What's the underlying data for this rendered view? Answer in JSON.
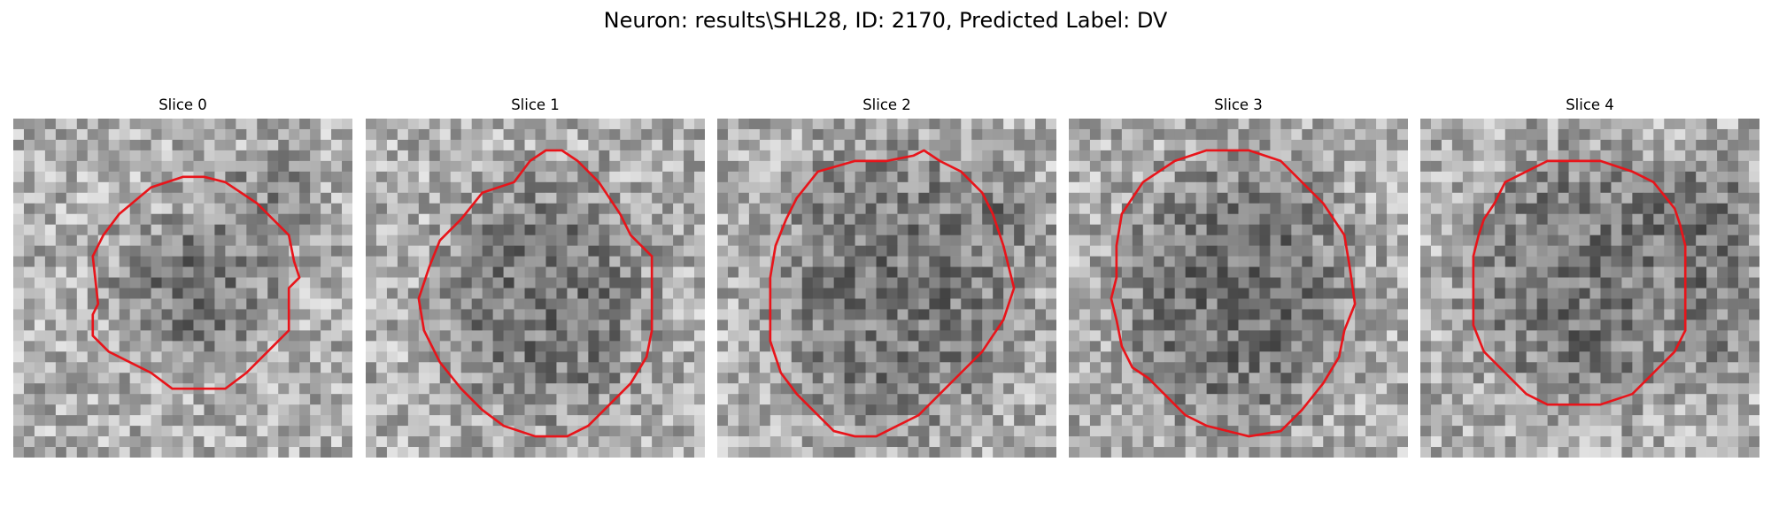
{
  "figure": {
    "title": "Neuron: results\\SHL28, ID: 2170, Predicted Label: DV"
  },
  "panels": [
    {
      "title": "Slice 0",
      "seed": 11,
      "contour": [
        [
          16,
          5.5
        ],
        [
          13,
          6.5
        ],
        [
          10,
          9
        ],
        [
          8.5,
          11
        ],
        [
          7.5,
          13
        ],
        [
          8,
          17.5
        ],
        [
          7.5,
          18.5
        ],
        [
          7.5,
          20.5
        ],
        [
          9,
          22
        ],
        [
          11,
          23
        ],
        [
          13,
          24
        ],
        [
          15,
          25.5
        ],
        [
          20,
          25.5
        ],
        [
          22,
          24
        ],
        [
          24,
          22
        ],
        [
          26,
          20
        ],
        [
          26,
          16
        ],
        [
          27,
          15
        ],
        [
          26.5,
          13.5
        ],
        [
          26,
          11
        ],
        [
          23,
          8
        ],
        [
          20,
          6
        ],
        [
          18,
          5.5
        ]
      ],
      "dark": [
        [
          17,
          16,
          7.5,
          6.5,
          55
        ],
        [
          24,
          8,
          4.5,
          4.5,
          35
        ]
      ]
    },
    {
      "title": "Slice 1",
      "seed": 23,
      "contour": [
        [
          17,
          3
        ],
        [
          15.5,
          4
        ],
        [
          14,
          6
        ],
        [
          11,
          7
        ],
        [
          9,
          9.5
        ],
        [
          7,
          11.5
        ],
        [
          6,
          14
        ],
        [
          5,
          17
        ],
        [
          5.5,
          20
        ],
        [
          7,
          23
        ],
        [
          9,
          25.5
        ],
        [
          11,
          27.5
        ],
        [
          13,
          29
        ],
        [
          16,
          30
        ],
        [
          19,
          30
        ],
        [
          21,
          29
        ],
        [
          23,
          27
        ],
        [
          25,
          25
        ],
        [
          26.5,
          22.5
        ],
        [
          27,
          20
        ],
        [
          27,
          16
        ],
        [
          27,
          13
        ],
        [
          25,
          11
        ],
        [
          24,
          9
        ],
        [
          22,
          6
        ],
        [
          20,
          4
        ],
        [
          18.5,
          3
        ]
      ],
      "dark": [
        [
          17,
          17,
          9.5,
          11,
          55
        ]
      ]
    },
    {
      "title": "Slice 2",
      "seed": 37,
      "contour": [
        [
          19.5,
          3
        ],
        [
          18.5,
          3.5
        ],
        [
          16,
          4
        ],
        [
          13,
          4
        ],
        [
          9.5,
          5
        ],
        [
          7.5,
          7.5
        ],
        [
          6.5,
          9.5
        ],
        [
          5.5,
          12
        ],
        [
          5,
          15
        ],
        [
          5,
          18
        ],
        [
          5,
          21
        ],
        [
          6,
          24
        ],
        [
          7.5,
          26
        ],
        [
          8.5,
          27
        ],
        [
          9.5,
          28
        ],
        [
          11,
          29.5
        ],
        [
          13,
          30
        ],
        [
          15,
          30
        ],
        [
          17,
          29
        ],
        [
          19,
          28
        ],
        [
          21,
          26
        ],
        [
          23,
          24
        ],
        [
          25,
          22
        ],
        [
          27,
          19
        ],
        [
          28,
          16
        ],
        [
          27,
          12
        ],
        [
          26,
          9
        ],
        [
          25,
          7
        ],
        [
          23,
          5
        ],
        [
          21,
          4
        ]
      ],
      "dark": [
        [
          17,
          16,
          11.5,
          13.5,
          55
        ],
        [
          28,
          9,
          3.5,
          3.5,
          35
        ]
      ]
    },
    {
      "title": "Slice 3",
      "seed": 53,
      "contour": [
        [
          16,
          3
        ],
        [
          13,
          3
        ],
        [
          10,
          4
        ],
        [
          7,
          6
        ],
        [
          5,
          9
        ],
        [
          4.5,
          12
        ],
        [
          4.5,
          15
        ],
        [
          4,
          17
        ],
        [
          4.5,
          19
        ],
        [
          5,
          21.5
        ],
        [
          6,
          23.5
        ],
        [
          7.5,
          24.5
        ],
        [
          9,
          26
        ],
        [
          10,
          27
        ],
        [
          11,
          28
        ],
        [
          13,
          29
        ],
        [
          17,
          30
        ],
        [
          20,
          29.5
        ],
        [
          22,
          27.5
        ],
        [
          24,
          25
        ],
        [
          25.5,
          22.5
        ],
        [
          26,
          20
        ],
        [
          27,
          17.5
        ],
        [
          26.5,
          14
        ],
        [
          26,
          11
        ],
        [
          24,
          8
        ],
        [
          22,
          6
        ],
        [
          20,
          4
        ],
        [
          17,
          3
        ]
      ],
      "dark": [
        [
          16,
          16.5,
          11,
          12.5,
          60
        ]
      ]
    },
    {
      "title": "Slice 4",
      "seed": 71,
      "contour": [
        [
          12,
          4
        ],
        [
          10,
          5
        ],
        [
          8,
          6
        ],
        [
          7,
          8
        ],
        [
          6,
          9.5
        ],
        [
          5.5,
          11
        ],
        [
          5,
          13
        ],
        [
          5,
          16
        ],
        [
          5,
          19.5
        ],
        [
          6,
          22
        ],
        [
          8,
          24
        ],
        [
          10,
          26
        ],
        [
          12,
          27
        ],
        [
          14,
          27
        ],
        [
          17,
          27
        ],
        [
          20,
          26
        ],
        [
          22,
          24
        ],
        [
          24,
          22
        ],
        [
          25,
          20
        ],
        [
          25,
          16
        ],
        [
          25,
          12
        ],
        [
          24.5,
          10
        ],
        [
          24,
          8.5
        ],
        [
          22,
          6
        ],
        [
          20,
          5
        ],
        [
          17,
          4
        ],
        [
          14,
          4
        ]
      ],
      "dark": [
        [
          15,
          15,
          10.5,
          12,
          55
        ],
        [
          27,
          9,
          5,
          5,
          45
        ],
        [
          28,
          19,
          4,
          7,
          40
        ]
      ]
    }
  ]
}
